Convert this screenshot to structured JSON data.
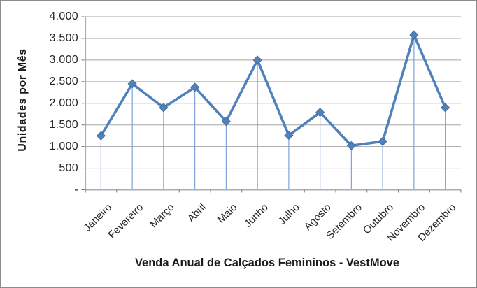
{
  "frame": {
    "background": "#FFFFFF",
    "border_color": "#8C8C8C"
  },
  "chart_data": {
    "type": "line",
    "x_axis_title": "Venda Anual de Calçados Femininos - VestMove",
    "y_axis_title": "Unidades por Mês",
    "categories": [
      "Janeiro",
      "Fevereiro",
      "Março",
      "Abril",
      "Maio",
      "Junho",
      "Julho",
      "Agosto",
      "Setembro",
      "Outubro",
      "Novembro",
      "Dezembro"
    ],
    "values": [
      1250,
      2450,
      1900,
      2370,
      1580,
      3000,
      1260,
      1790,
      1020,
      1120,
      3580,
      1900
    ],
    "y_ticks": [
      {
        "value": 4000,
        "label": "4.000"
      },
      {
        "value": 3500,
        "label": "3.500"
      },
      {
        "value": 3000,
        "label": "3.000"
      },
      {
        "value": 2500,
        "label": "2.500"
      },
      {
        "value": 2000,
        "label": "2.000"
      },
      {
        "value": 1500,
        "label": "1.500"
      },
      {
        "value": 1000,
        "label": "1.000"
      },
      {
        "value": 500,
        "label": "500"
      },
      {
        "value": 0,
        "label": "-"
      }
    ],
    "ylim": [
      0,
      4000
    ],
    "y_major_unit": 500,
    "gridlines": "horizontal-major",
    "legend": "none",
    "marker": "diamond",
    "drop_lines": true,
    "colors": {
      "series": "#4F81BD",
      "marker": "#4F81BD",
      "marker_edge": "#3C699B",
      "drop_line": "#7FA4D6",
      "gridline": "#A6A6A6",
      "axis": "#ADADAD",
      "tick": "#7F7F7F",
      "text": "#262626"
    }
  }
}
